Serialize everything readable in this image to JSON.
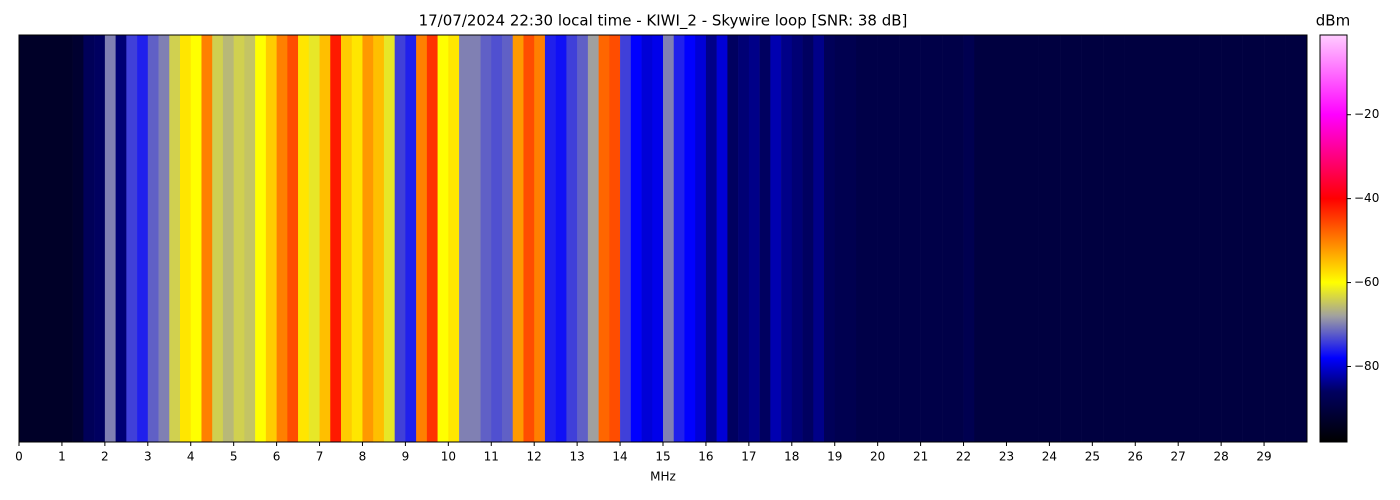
{
  "chart_data": {
    "type": "spectrogram",
    "title": "17/07/2024 22:30 local time - KIWI_2 - Skywire loop [SNR: 38 dB]",
    "xlabel": "MHz",
    "colorbar_label": "dBm",
    "bins": [
      0,
      0.25,
      0.5,
      0.75,
      1,
      1.25,
      1.5,
      1.75,
      2,
      2.25,
      2.5,
      2.75,
      3,
      3.25,
      3.5,
      3.75,
      4,
      4.25,
      4.5,
      4.75,
      5,
      5.25,
      5.5,
      5.75,
      6,
      6.25,
      6.5,
      6.75,
      7,
      7.25,
      7.5,
      7.75,
      8,
      8.25,
      8.5,
      8.75,
      9,
      9.25,
      9.5,
      9.75,
      10,
      10.25,
      10.5,
      10.75,
      11,
      11.25,
      11.5,
      11.75,
      12,
      12.25,
      12.5,
      12.75,
      13,
      13.25,
      13.5,
      13.75,
      14,
      14.25,
      14.5,
      14.75,
      15,
      15.25,
      15.5,
      15.75,
      16,
      16.25,
      16.5,
      16.75,
      17,
      17.25,
      17.5,
      17.75,
      18,
      18.25,
      18.5,
      18.75,
      19,
      19.25,
      19.5,
      19.75,
      20,
      20.25,
      20.5,
      20.75,
      21,
      21.25,
      21.5,
      21.75,
      22,
      22.25,
      22.5,
      22.75,
      23,
      23.25,
      23.5,
      23.75,
      24,
      24.25,
      24.5,
      24.75,
      25,
      25.25,
      25.5,
      25.75,
      26,
      26.25,
      26.5,
      26.75,
      27,
      27.25,
      27.5,
      27.75,
      28,
      28.25,
      28.5,
      28.75,
      29,
      29.25,
      29.5,
      29.75,
      30
    ],
    "values": [
      -93,
      -93,
      -93,
      -93,
      -93,
      -92,
      -87,
      -86,
      -70,
      -85,
      -74,
      -76,
      -72,
      -70,
      -64,
      -58,
      -60,
      -50,
      -64,
      -66,
      -64,
      -65,
      -60,
      -56,
      -50,
      -46,
      -58,
      -62,
      -55,
      -42,
      -56,
      -58,
      -52,
      -55,
      -62,
      -74,
      -76,
      -50,
      -44,
      -60,
      -58,
      -70,
      -70,
      -72,
      -73,
      -72,
      -52,
      -46,
      -50,
      -76,
      -77,
      -74,
      -72,
      -68,
      -48,
      -46,
      -74,
      -78,
      -80,
      -79,
      -70,
      -76,
      -78,
      -80,
      -84,
      -80,
      -86,
      -85,
      -84,
      -86,
      -82,
      -84,
      -85,
      -86,
      -84,
      -87,
      -88,
      -88,
      -89,
      -89,
      -89,
      -89,
      -89,
      -89,
      -89,
      -89,
      -89,
      -89,
      -88,
      -90,
      -90,
      -90,
      -90,
      -90,
      -90,
      -90,
      -90,
      -90,
      -90,
      -90,
      -90,
      -90,
      -90,
      -90,
      -90,
      -90,
      -90,
      -90,
      -90,
      -90,
      -90,
      -90,
      -90,
      -90,
      -90,
      -90,
      -90,
      -90,
      -90,
      -90,
      -90
    ],
    "xlim": [
      0,
      30
    ],
    "xticks": [
      0,
      1,
      2,
      3,
      4,
      5,
      6,
      7,
      8,
      9,
      10,
      11,
      12,
      13,
      14,
      15,
      16,
      17,
      18,
      19,
      20,
      21,
      22,
      23,
      24,
      25,
      26,
      27,
      28,
      29
    ],
    "clim": [
      -98,
      -1
    ],
    "cticks": [
      {
        "value": -20,
        "label": "−20"
      },
      {
        "value": -40,
        "label": "−40"
      },
      {
        "value": -60,
        "label": "−60"
      },
      {
        "value": -80,
        "label": "−80"
      }
    ],
    "colormap": [
      {
        "value": -98,
        "color": "#000000"
      },
      {
        "value": -86,
        "color": "#000060"
      },
      {
        "value": -78,
        "color": "#0000ff"
      },
      {
        "value": -68,
        "color": "#a0a0a0"
      },
      {
        "value": -60,
        "color": "#ffff00"
      },
      {
        "value": -40,
        "color": "#ff0000"
      },
      {
        "value": -20,
        "color": "#ff00ff"
      },
      {
        "value": -1,
        "color": "#ffccff"
      }
    ]
  }
}
